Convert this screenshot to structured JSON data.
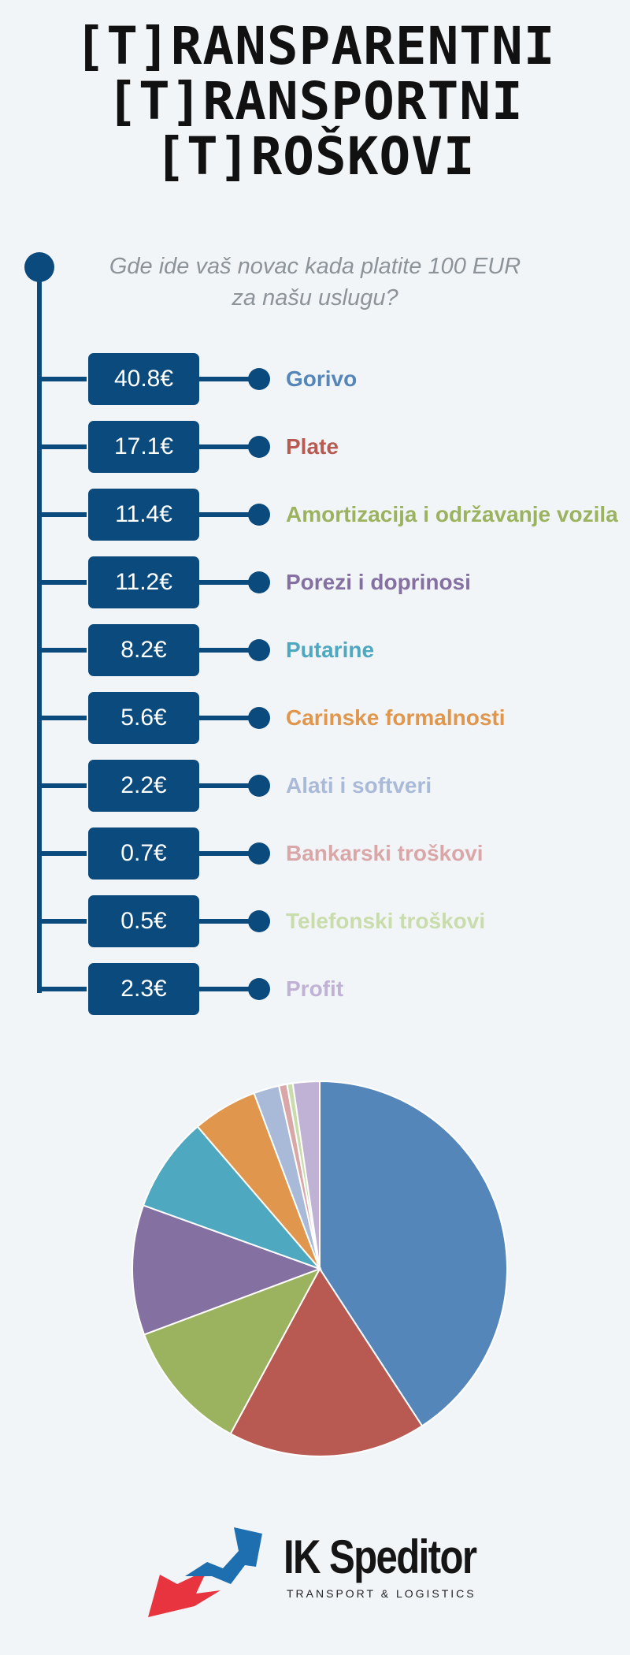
{
  "title": {
    "line1": "[T]RANSPARENTNI",
    "line2": "[T]RANSPORTNI",
    "line3": "[T]ROŠKOVI"
  },
  "subtitle": {
    "line1": "Gde ide vaš novac kada platite 100 EUR",
    "line2": "za našu uslugu?"
  },
  "chart_data": {
    "type": "pie",
    "title": "Gde ide vaš novac kada platite 100 EUR za našu uslugu?",
    "unit": "€",
    "categories": [
      "Gorivo",
      "Plate",
      "Amortizacija i održavanje vozila",
      "Porezi i doprinosi",
      "Putarine",
      "Carinske formalnosti",
      "Alati i softveri",
      "Bankarski troškovi",
      "Telefonski troškovi",
      "Profit"
    ],
    "values": [
      40.8,
      17.1,
      11.4,
      11.2,
      8.2,
      5.6,
      2.2,
      0.7,
      0.5,
      2.3
    ],
    "value_labels": [
      "40.8€",
      "17.1€",
      "11.4€",
      "11.2€",
      "8.2€",
      "5.6€",
      "2.2€",
      "0.7€",
      "0.5€",
      "2.3€"
    ],
    "colors": [
      "#5586b9",
      "#b95a52",
      "#9bb25f",
      "#8570a2",
      "#4ea8bf",
      "#e0964c",
      "#a9bad9",
      "#daa7a8",
      "#c9dcab",
      "#c0b2d5"
    ]
  },
  "logo": {
    "name": "IK Speditor",
    "tagline": "TRANSPORT & LOGISTICS",
    "colors": [
      "#e8343f",
      "#1e6fb0"
    ]
  }
}
